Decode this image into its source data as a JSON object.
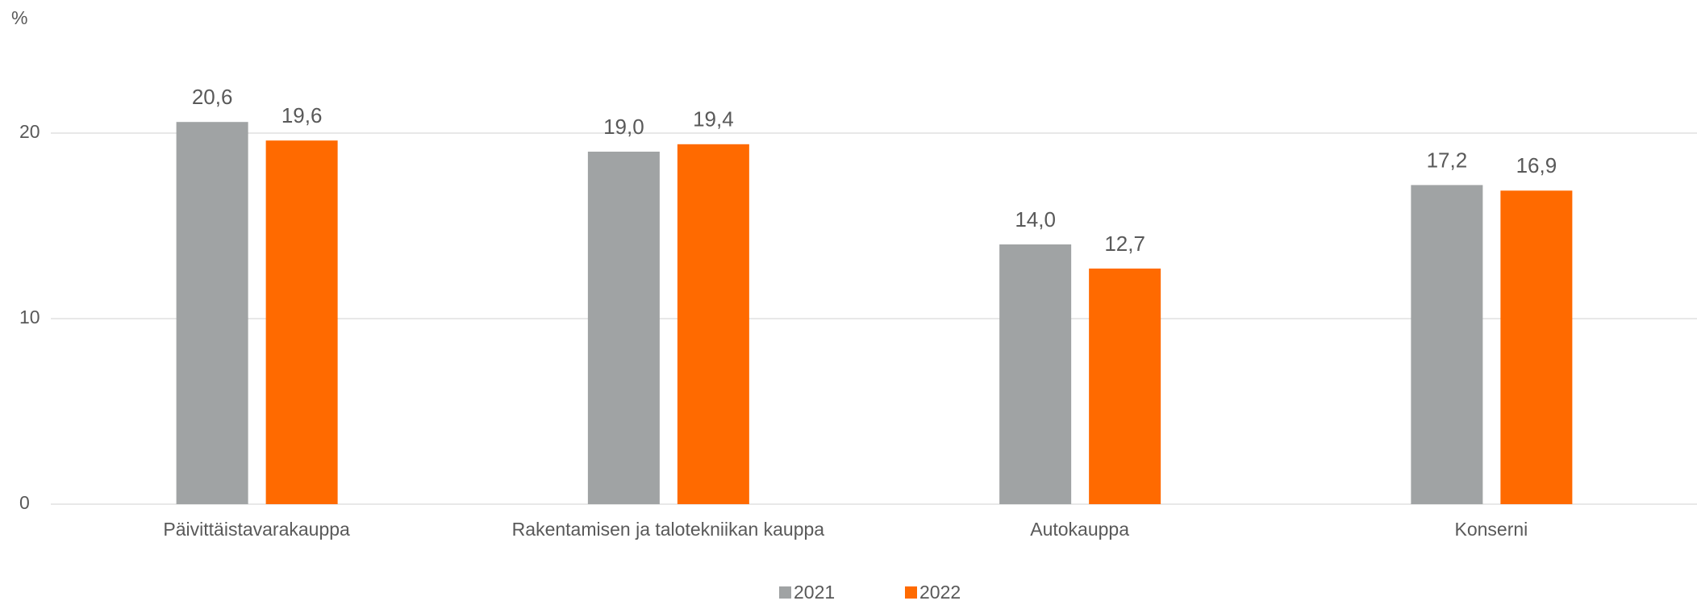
{
  "chart_data": {
    "type": "bar",
    "y_label": "%",
    "categories": [
      "Päivittäistavarakauppa",
      "Rakentamisen ja talotekniikan kauppa",
      "Autokauppa",
      "Konserni"
    ],
    "series": [
      {
        "name": "2021",
        "color": "#a0a3a4",
        "values": [
          20.6,
          19.0,
          14.0,
          17.2
        ],
        "value_labels": [
          "20,6",
          "19,0",
          "14,0",
          "17,2"
        ]
      },
      {
        "name": "2022",
        "color": "#ff6a00",
        "values": [
          19.6,
          19.4,
          12.7,
          16.9
        ],
        "value_labels": [
          "19,6",
          "19,4",
          "12,7",
          "16,9"
        ]
      }
    ],
    "ylim": [
      0,
      25
    ],
    "yticks": [
      0,
      10,
      20
    ],
    "grid": true,
    "legend": "bottom"
  }
}
